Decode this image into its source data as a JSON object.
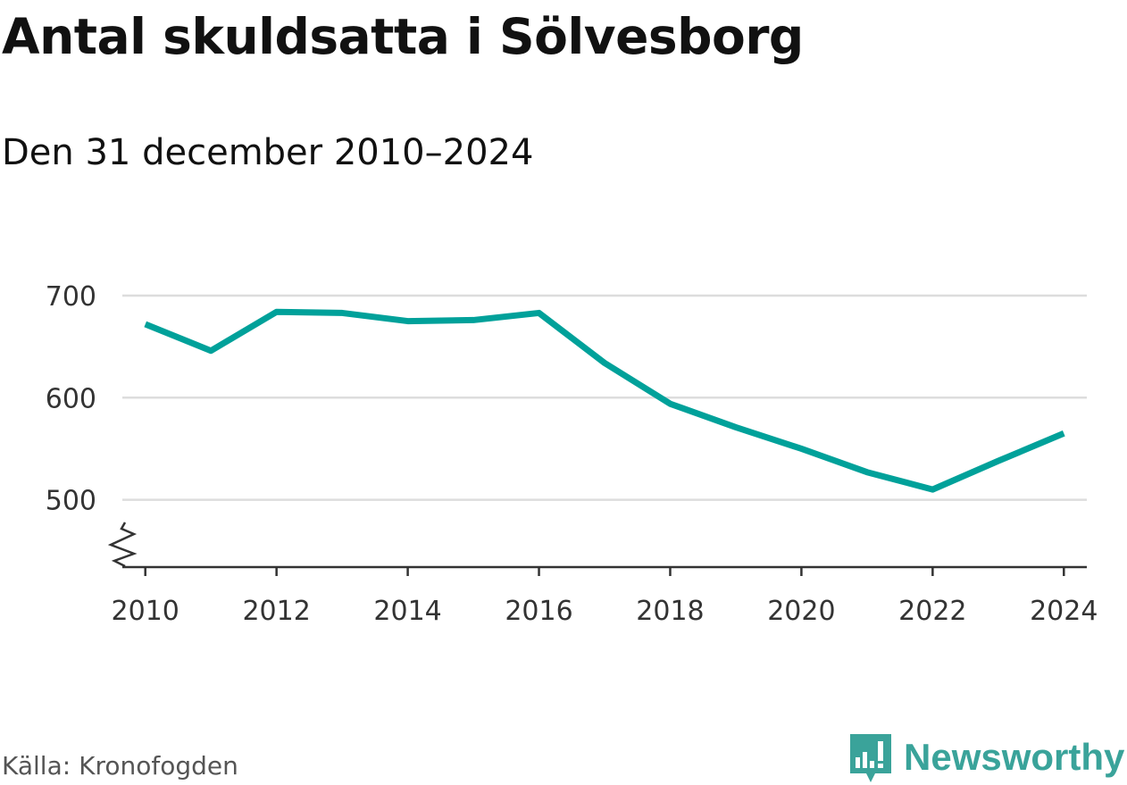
{
  "header": {
    "title": "Antal skuldsatta i Sölvesborg",
    "subtitle": "Den 31 december 2010–2024"
  },
  "footer": {
    "source": "Källa: Kronofogden",
    "brand": "Newsworthy",
    "brand_icon": "newsworthy-logo-icon"
  },
  "colors": {
    "line": "#00a19a",
    "grid": "#dddddd",
    "axis": "#333333",
    "brand": "#3aa39a"
  },
  "chart_data": {
    "type": "line",
    "title": "Antal skuldsatta i Sölvesborg",
    "subtitle": "Den 31 december 2010–2024",
    "xlabel": "",
    "ylabel": "",
    "x": [
      2010,
      2011,
      2012,
      2013,
      2014,
      2015,
      2016,
      2017,
      2018,
      2019,
      2020,
      2021,
      2022,
      2023,
      2024
    ],
    "series": [
      {
        "name": "Antal skuldsatta",
        "values": [
          672,
          646,
          684,
          683,
          675,
          676,
          683,
          634,
          594,
          571,
          550,
          527,
          510,
          538,
          565
        ]
      }
    ],
    "xticks": [
      2010,
      2012,
      2014,
      2016,
      2018,
      2020,
      2022,
      2024
    ],
    "yticks": [
      500,
      600,
      700
    ],
    "ylim": [
      434,
      700
    ],
    "xlim": [
      2009.65,
      2024.35
    ],
    "axis_break": true,
    "grid": true,
    "legend": "none"
  }
}
